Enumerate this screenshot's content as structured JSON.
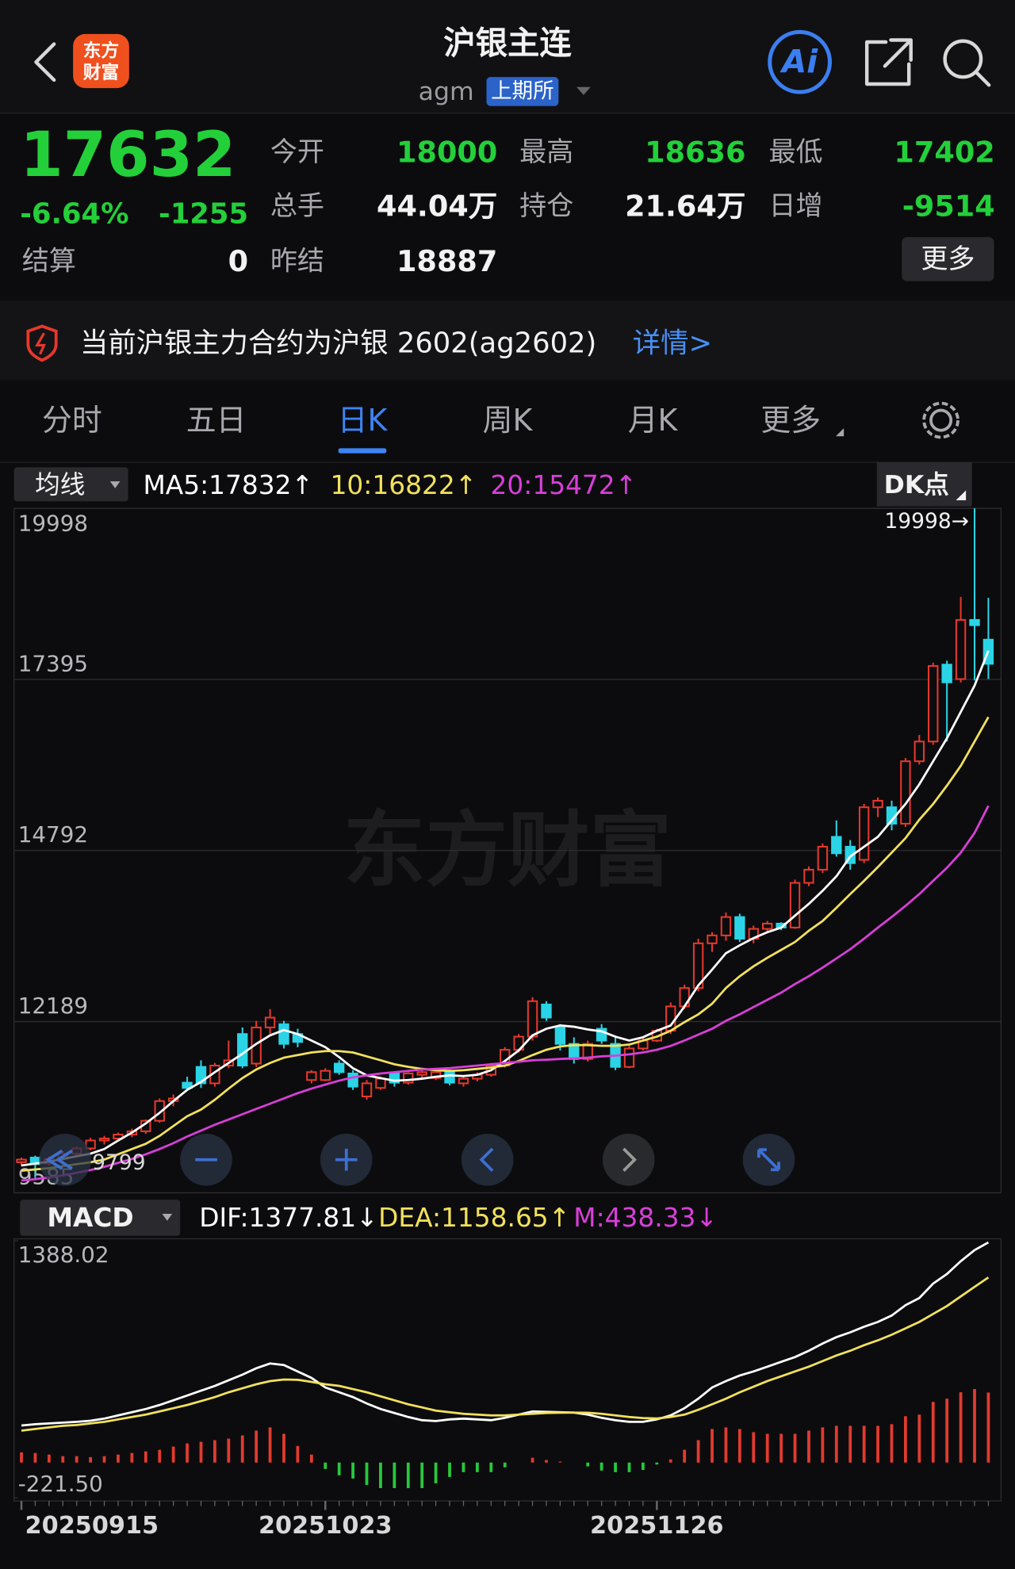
{
  "header": {
    "title": "沪银主连",
    "code": "agm",
    "exchange": "上期所",
    "logo_lines": [
      "东方",
      "财富"
    ],
    "ai": "Ai"
  },
  "quote": {
    "price": "17632",
    "change_percent": "-6.64%",
    "change": "-1255",
    "settlement": {
      "label": "结算",
      "value": "0"
    },
    "fields": [
      {
        "label": "今开",
        "value": "18000"
      },
      {
        "label": "最高",
        "value": "18636"
      },
      {
        "label": "最低",
        "value": "17402"
      },
      {
        "label": "总手",
        "value": "44.04万"
      },
      {
        "label": "持仓",
        "value": "21.64万"
      },
      {
        "label": "日增",
        "value": "-9514"
      },
      {
        "label": "昨结",
        "value": "18887"
      }
    ],
    "more": "更多"
  },
  "notice": {
    "text": "当前沪银主力合约为沪银 2602(ag2602)",
    "link": "详情>"
  },
  "tabs": [
    "分时",
    "五日",
    "日K",
    "周K",
    "月K",
    "更多"
  ],
  "chart_data": [
    {
      "type": "candlestick",
      "selector": "均线",
      "dk_button": "DK点",
      "watermark": "东方财富",
      "ylim": [
        9585,
        19998
      ],
      "yticks": [
        19998,
        17395,
        14792,
        12189,
        9585
      ],
      "grid": true,
      "max_label": "19998→",
      "min_label": "9799",
      "up_color": "#e8382c",
      "down_color": "#2ad4e6",
      "candles": [
        [
          10050,
          10120,
          9990,
          10090
        ],
        [
          10120,
          10150,
          9799,
          10020
        ],
        [
          10030,
          10140,
          10000,
          10100
        ],
        [
          10100,
          10220,
          10060,
          10180
        ],
        [
          10180,
          10290,
          10150,
          10260
        ],
        [
          10260,
          10420,
          10230,
          10380
        ],
        [
          10380,
          10450,
          10320,
          10410
        ],
        [
          10410,
          10500,
          10380,
          10470
        ],
        [
          10470,
          10560,
          10430,
          10520
        ],
        [
          10520,
          10700,
          10480,
          10680
        ],
        [
          10680,
          11020,
          10650,
          10980
        ],
        [
          10980,
          11080,
          10900,
          11020
        ],
        [
          11260,
          11350,
          11150,
          11180
        ],
        [
          11500,
          11600,
          11180,
          11250
        ],
        [
          11250,
          11560,
          11200,
          11520
        ],
        [
          11520,
          11900,
          11480,
          11600
        ],
        [
          12000,
          12100,
          11480,
          11520
        ],
        [
          11550,
          12200,
          11500,
          12100
        ],
        [
          12100,
          12380,
          12000,
          12250
        ],
        [
          12150,
          12200,
          11780,
          11850
        ],
        [
          12000,
          12080,
          11800,
          11880
        ],
        [
          11300,
          11450,
          11250,
          11420
        ],
        [
          11300,
          11480,
          11280,
          11440
        ],
        [
          11550,
          11600,
          11380,
          11420
        ],
        [
          11400,
          11450,
          11150,
          11200
        ],
        [
          11050,
          11300,
          11000,
          11250
        ],
        [
          11180,
          11350,
          11150,
          11320
        ],
        [
          11400,
          11420,
          11200,
          11260
        ],
        [
          11260,
          11420,
          11230,
          11400
        ],
        [
          11380,
          11450,
          11320,
          11420
        ],
        [
          11330,
          11450,
          11300,
          11420
        ],
        [
          11420,
          11460,
          11220,
          11260
        ],
        [
          11250,
          11360,
          11200,
          11320
        ],
        [
          11320,
          11420,
          11280,
          11380
        ],
        [
          11380,
          11560,
          11350,
          11520
        ],
        [
          11520,
          11800,
          11490,
          11760
        ],
        [
          11760,
          12000,
          11720,
          11960
        ],
        [
          11960,
          12560,
          11900,
          12500
        ],
        [
          12450,
          12500,
          12200,
          12250
        ],
        [
          12100,
          12150,
          11750,
          11850
        ],
        [
          11850,
          11950,
          11550,
          11620
        ],
        [
          11620,
          11900,
          11580,
          11850
        ],
        [
          12080,
          12150,
          11850,
          11900
        ],
        [
          11850,
          11950,
          11450,
          11500
        ],
        [
          11500,
          11820,
          11480,
          11780
        ],
        [
          11780,
          11950,
          11750,
          11900
        ],
        [
          11900,
          12080,
          11880,
          12050
        ],
        [
          12050,
          12480,
          12000,
          12420
        ],
        [
          12420,
          12750,
          12380,
          12700
        ],
        [
          12700,
          13450,
          12650,
          13380
        ],
        [
          13380,
          13550,
          13250,
          13500
        ],
        [
          13500,
          13850,
          13420,
          13780
        ],
        [
          13780,
          13830,
          13400,
          13450
        ],
        [
          13450,
          13650,
          13380,
          13600
        ],
        [
          13600,
          13720,
          13550,
          13680
        ],
        [
          13680,
          13700,
          13580,
          13620
        ],
        [
          13620,
          14350,
          13600,
          14300
        ],
        [
          14300,
          14550,
          14250,
          14500
        ],
        [
          14500,
          14900,
          14450,
          14850
        ],
        [
          15000,
          15250,
          14700,
          14750
        ],
        [
          14850,
          14950,
          14500,
          14600
        ],
        [
          14650,
          15500,
          14600,
          15450
        ],
        [
          15450,
          15600,
          15300,
          15550
        ],
        [
          15450,
          15550,
          15100,
          15200
        ],
        [
          15200,
          16200,
          15150,
          16150
        ],
        [
          16150,
          16550,
          16100,
          16450
        ],
        [
          16450,
          17650,
          16400,
          17600
        ],
        [
          17620,
          17680,
          16450,
          17350
        ],
        [
          17400,
          18650,
          17350,
          18300
        ],
        [
          18300,
          19998,
          17380,
          18220
        ],
        [
          18000,
          18636,
          17402,
          17632
        ]
      ],
      "series": [
        {
          "name": "MA5:17832↑",
          "color": "#ffffff",
          "values": [
            10000,
            10030,
            10060,
            10100,
            10140,
            10180,
            10250,
            10380,
            10500,
            10640,
            10800,
            10980,
            11150,
            11270,
            11420,
            11560,
            11700,
            11850,
            11980,
            12060,
            12000,
            11900,
            11800,
            11650,
            11480,
            11370,
            11330,
            11290,
            11300,
            11320,
            11350,
            11370,
            11360,
            11380,
            11450,
            11590,
            11750,
            11980,
            12080,
            12130,
            12110,
            12070,
            12040,
            11960,
            11900,
            11950,
            12050,
            12130,
            12420,
            12740,
            12980,
            13230,
            13350,
            13460,
            13550,
            13620,
            13800,
            13980,
            14180,
            14400,
            14700,
            14850,
            15000,
            15250,
            15500,
            15800,
            16150,
            16500,
            16900,
            17300,
            17832
          ]
        },
        {
          "name": "10:16822↑",
          "color": "#f2e15b",
          "values": [
            9920,
            9940,
            9960,
            9990,
            10020,
            10050,
            10090,
            10170,
            10250,
            10330,
            10450,
            10600,
            10750,
            10850,
            11000,
            11170,
            11330,
            11460,
            11560,
            11640,
            11680,
            11720,
            11740,
            11740,
            11720,
            11660,
            11600,
            11540,
            11500,
            11470,
            11450,
            11440,
            11450,
            11470,
            11490,
            11520,
            11590,
            11680,
            11760,
            11810,
            11830,
            11830,
            11820,
            11820,
            11840,
            11900,
            11960,
            12050,
            12180,
            12300,
            12460,
            12700,
            12880,
            13030,
            13160,
            13280,
            13400,
            13570,
            13720,
            13920,
            14130,
            14330,
            14540,
            14760,
            14980,
            15260,
            15500,
            15780,
            16080,
            16450,
            16822
          ]
        },
        {
          "name": "20:15472↑",
          "color": "#d83fd8",
          "values": [
            9770,
            9790,
            9820,
            9850,
            9890,
            9930,
            9980,
            10040,
            10100,
            10170,
            10250,
            10340,
            10440,
            10530,
            10620,
            10700,
            10780,
            10860,
            10940,
            11020,
            11100,
            11170,
            11230,
            11290,
            11340,
            11370,
            11400,
            11420,
            11440,
            11460,
            11470,
            11480,
            11500,
            11520,
            11540,
            11560,
            11580,
            11600,
            11610,
            11620,
            11630,
            11640,
            11660,
            11670,
            11690,
            11720,
            11760,
            11820,
            11900,
            11990,
            12080,
            12200,
            12300,
            12410,
            12520,
            12630,
            12760,
            12880,
            13010,
            13150,
            13290,
            13450,
            13620,
            13780,
            13950,
            14130,
            14330,
            14530,
            14760,
            15060,
            15472
          ]
        }
      ]
    },
    {
      "type": "macd",
      "selector": "MACD",
      "ylim": [
        -221.5,
        1388.02
      ],
      "yticks": [
        1388.02,
        {
          "value": -221.5,
          "label": "-221.50"
        }
      ],
      "up_color": "#e23b2f",
      "down_color": "#28c83c",
      "categories": [
        "20250915",
        null,
        null,
        null,
        null,
        null,
        null,
        null,
        null,
        null,
        null,
        null,
        null,
        null,
        null,
        null,
        null,
        null,
        null,
        null,
        null,
        null,
        "20251023",
        null,
        null,
        null,
        null,
        null,
        null,
        null,
        null,
        null,
        null,
        null,
        null,
        null,
        null,
        null,
        null,
        null,
        null,
        null,
        null,
        null,
        null,
        null,
        "20251126",
        null,
        null,
        null,
        null,
        null,
        null,
        null,
        null,
        null,
        null,
        null,
        null,
        null,
        null,
        null,
        null,
        null,
        null,
        null,
        null,
        null,
        null,
        null,
        null
      ],
      "series": [
        {
          "name": "DIF:1377.81↓",
          "color": "#ffffff",
          "values": [
            232,
            240,
            245,
            250,
            255,
            262,
            275,
            295,
            315,
            335,
            360,
            390,
            420,
            450,
            480,
            515,
            550,
            590,
            620,
            610,
            570,
            530,
            470,
            440,
            410,
            370,
            335,
            310,
            285,
            265,
            260,
            270,
            275,
            270,
            265,
            280,
            300,
            320,
            318,
            315,
            313,
            300,
            280,
            265,
            255,
            255,
            270,
            295,
            340,
            400,
            470,
            510,
            545,
            570,
            600,
            630,
            660,
            700,
            745,
            785,
            815,
            850,
            880,
            920,
            985,
            1030,
            1120,
            1180,
            1260,
            1330,
            1377.81
          ]
        },
        {
          "name": "DEA:1158.65↑",
          "color": "#f2e15b",
          "values": [
            200,
            210,
            220,
            230,
            235,
            245,
            255,
            270,
            285,
            300,
            320,
            340,
            360,
            385,
            410,
            440,
            465,
            490,
            510,
            520,
            518,
            505,
            490,
            480,
            460,
            440,
            415,
            390,
            365,
            345,
            325,
            315,
            305,
            300,
            295,
            295,
            300,
            305,
            310,
            312,
            313,
            312,
            305,
            295,
            285,
            278,
            276,
            285,
            300,
            330,
            365,
            400,
            440,
            475,
            510,
            540,
            570,
            600,
            635,
            670,
            700,
            735,
            765,
            800,
            840,
            880,
            930,
            980,
            1040,
            1100,
            1158.65
          ]
        },
        {
          "name": "M:438.33↓",
          "color": "#d83fd8",
          "style": "bar",
          "values": [
            64,
            60,
            50,
            40,
            40,
            34,
            40,
            50,
            60,
            70,
            80,
            100,
            120,
            130,
            140,
            150,
            170,
            200,
            220,
            180,
            104,
            50,
            -40,
            -80,
            -100,
            -140,
            -160,
            -160,
            -160,
            -160,
            -130,
            -90,
            -60,
            -60,
            -60,
            -30,
            0,
            30,
            16,
            6,
            0,
            -24,
            -50,
            -60,
            -60,
            -46,
            -12,
            20,
            80,
            140,
            210,
            220,
            210,
            190,
            180,
            180,
            180,
            200,
            220,
            230,
            230,
            230,
            230,
            240,
            290,
            300,
            380,
            400,
            440,
            460,
            438.33
          ]
        }
      ]
    }
  ]
}
